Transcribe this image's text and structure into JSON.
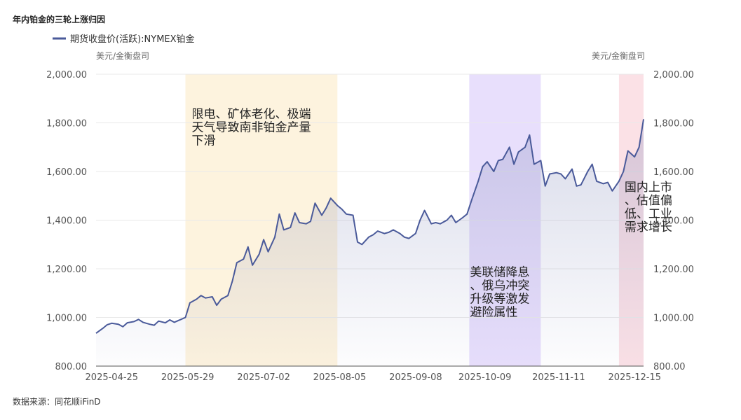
{
  "title": "年内铂金的三轮上涨归因",
  "legend": {
    "series_label": "期货收盘价(活跃):NYMEX铂金",
    "color": "#4a5a9a"
  },
  "axis_units": {
    "left": "美元/金衡盘司",
    "right": "美元/金衡盘司"
  },
  "source": "数据来源：同花顺iFinD",
  "chart_data": {
    "type": "area",
    "ylim": [
      800,
      2000
    ],
    "yticks": [
      "800.00",
      "1,000.00",
      "1,200.00",
      "1,400.00",
      "1,600.00",
      "1,800.00",
      "2,000.00"
    ],
    "xlim": [
      "2025-04-18",
      "2025-12-19"
    ],
    "xticks": [
      "2025-04-25",
      "2025-05-29",
      "2025-07-02",
      "2025-08-05",
      "2025-09-08",
      "2025-10-09",
      "2025-11-11",
      "2025-12-15"
    ],
    "grid": true,
    "legend_position": "top-left",
    "series": [
      {
        "name": "期货收盘价(活跃):NYMEX铂金",
        "points": [
          [
            "2025-04-18",
            935
          ],
          [
            "2025-04-21",
            955
          ],
          [
            "2025-04-23",
            970
          ],
          [
            "2025-04-25",
            976
          ],
          [
            "2025-04-28",
            972
          ],
          [
            "2025-04-30",
            962
          ],
          [
            "2025-05-02",
            978
          ],
          [
            "2025-05-05",
            983
          ],
          [
            "2025-05-07",
            992
          ],
          [
            "2025-05-09",
            980
          ],
          [
            "2025-05-12",
            972
          ],
          [
            "2025-05-14",
            968
          ],
          [
            "2025-05-16",
            985
          ],
          [
            "2025-05-19",
            978
          ],
          [
            "2025-05-21",
            990
          ],
          [
            "2025-05-23",
            980
          ],
          [
            "2025-05-26",
            992
          ],
          [
            "2025-05-28",
            1000
          ],
          [
            "2025-05-30",
            1060
          ],
          [
            "2025-06-02",
            1075
          ],
          [
            "2025-06-04",
            1090
          ],
          [
            "2025-06-06",
            1080
          ],
          [
            "2025-06-09",
            1085
          ],
          [
            "2025-06-11",
            1050
          ],
          [
            "2025-06-13",
            1075
          ],
          [
            "2025-06-16",
            1090
          ],
          [
            "2025-06-18",
            1150
          ],
          [
            "2025-06-20",
            1225
          ],
          [
            "2025-06-23",
            1240
          ],
          [
            "2025-06-25",
            1290
          ],
          [
            "2025-06-27",
            1215
          ],
          [
            "2025-06-30",
            1260
          ],
          [
            "2025-07-02",
            1320
          ],
          [
            "2025-07-04",
            1270
          ],
          [
            "2025-07-07",
            1330
          ],
          [
            "2025-07-09",
            1425
          ],
          [
            "2025-07-11",
            1360
          ],
          [
            "2025-07-14",
            1370
          ],
          [
            "2025-07-16",
            1430
          ],
          [
            "2025-07-18",
            1390
          ],
          [
            "2025-07-21",
            1385
          ],
          [
            "2025-07-23",
            1395
          ],
          [
            "2025-07-25",
            1470
          ],
          [
            "2025-07-28",
            1420
          ],
          [
            "2025-07-30",
            1450
          ],
          [
            "2025-08-01",
            1490
          ],
          [
            "2025-08-04",
            1460
          ],
          [
            "2025-08-06",
            1445
          ],
          [
            "2025-08-08",
            1425
          ],
          [
            "2025-08-11",
            1420
          ],
          [
            "2025-08-13",
            1310
          ],
          [
            "2025-08-15",
            1300
          ],
          [
            "2025-08-18",
            1330
          ],
          [
            "2025-08-20",
            1340
          ],
          [
            "2025-08-22",
            1355
          ],
          [
            "2025-08-25",
            1345
          ],
          [
            "2025-08-27",
            1350
          ],
          [
            "2025-08-29",
            1360
          ],
          [
            "2025-09-01",
            1345
          ],
          [
            "2025-09-03",
            1330
          ],
          [
            "2025-09-05",
            1325
          ],
          [
            "2025-09-08",
            1345
          ],
          [
            "2025-09-10",
            1400
          ],
          [
            "2025-09-12",
            1440
          ],
          [
            "2025-09-15",
            1385
          ],
          [
            "2025-09-17",
            1390
          ],
          [
            "2025-09-19",
            1385
          ],
          [
            "2025-09-22",
            1400
          ],
          [
            "2025-09-24",
            1420
          ],
          [
            "2025-09-26",
            1390
          ],
          [
            "2025-09-29",
            1410
          ],
          [
            "2025-10-01",
            1425
          ],
          [
            "2025-10-03",
            1480
          ],
          [
            "2025-10-06",
            1560
          ],
          [
            "2025-10-08",
            1620
          ],
          [
            "2025-10-10",
            1640
          ],
          [
            "2025-10-13",
            1600
          ],
          [
            "2025-10-15",
            1645
          ],
          [
            "2025-10-17",
            1650
          ],
          [
            "2025-10-20",
            1700
          ],
          [
            "2025-10-22",
            1630
          ],
          [
            "2025-10-24",
            1680
          ],
          [
            "2025-10-27",
            1700
          ],
          [
            "2025-10-29",
            1750
          ],
          [
            "2025-10-31",
            1630
          ],
          [
            "2025-11-03",
            1645
          ],
          [
            "2025-11-05",
            1540
          ],
          [
            "2025-11-07",
            1590
          ],
          [
            "2025-11-10",
            1595
          ],
          [
            "2025-11-12",
            1590
          ],
          [
            "2025-11-14",
            1570
          ],
          [
            "2025-11-17",
            1610
          ],
          [
            "2025-11-19",
            1540
          ],
          [
            "2025-11-21",
            1545
          ],
          [
            "2025-11-24",
            1600
          ],
          [
            "2025-11-26",
            1630
          ],
          [
            "2025-11-28",
            1560
          ],
          [
            "2025-12-01",
            1550
          ],
          [
            "2025-12-03",
            1555
          ],
          [
            "2025-12-05",
            1520
          ],
          [
            "2025-12-08",
            1560
          ],
          [
            "2025-12-10",
            1600
          ],
          [
            "2025-12-12",
            1685
          ],
          [
            "2025-12-15",
            1660
          ],
          [
            "2025-12-17",
            1700
          ],
          [
            "2025-12-19",
            1815
          ]
        ]
      }
    ],
    "highlight_periods": [
      {
        "start": "2025-05-28",
        "end": "2025-08-04",
        "color": "#fdf3de",
        "annotation": [
          "限电、矿体老化、极端",
          "天气导致南非铂金产量",
          "下滑"
        ]
      },
      {
        "start": "2025-10-02",
        "end": "2025-11-03",
        "color": "#e8dffc",
        "annotation": [
          "美联储降息",
          "、俄乌冲突",
          "升级等激发",
          "避险属性"
        ]
      },
      {
        "start": "2025-12-08",
        "end": "2025-12-19",
        "color": "#fbe1e6",
        "annotation": [
          "国内上市",
          "、估值偏",
          "低、工业",
          "需求增长"
        ]
      }
    ]
  }
}
